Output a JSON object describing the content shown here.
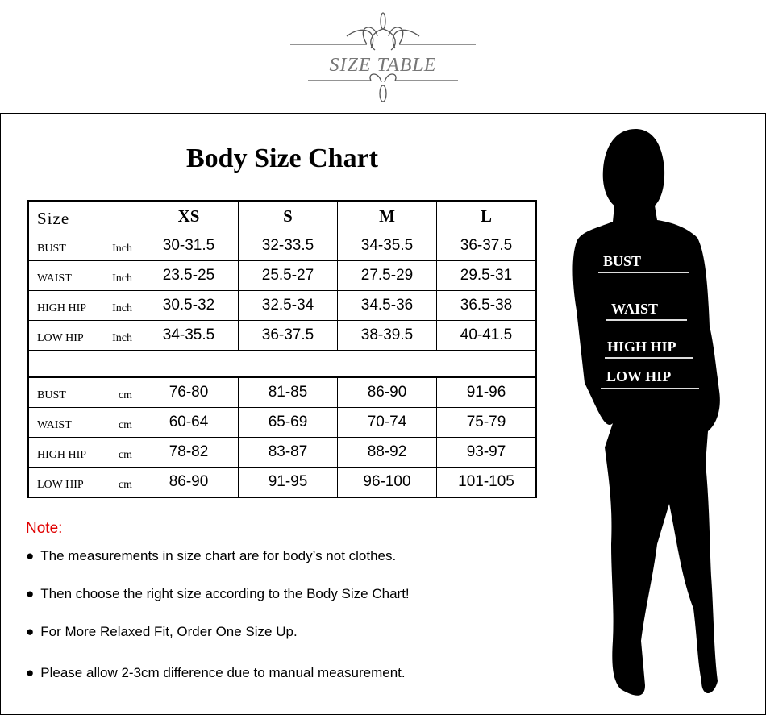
{
  "logo_text": "SIZE TABLE",
  "title": "Body Size Chart",
  "table": {
    "header": {
      "label": "Size",
      "sizes": [
        "XS",
        "S",
        "M",
        "L"
      ]
    },
    "inch_rows": [
      {
        "name": "BUST",
        "unit": "Inch",
        "values": [
          "30-31.5",
          "32-33.5",
          "34-35.5",
          "36-37.5"
        ]
      },
      {
        "name": "WAIST",
        "unit": "Inch",
        "values": [
          "23.5-25",
          "25.5-27",
          "27.5-29",
          "29.5-31"
        ]
      },
      {
        "name": "HIGH HIP",
        "unit": "Inch",
        "values": [
          "30.5-32",
          "32.5-34",
          "34.5-36",
          "36.5-38"
        ]
      },
      {
        "name": "LOW HIP",
        "unit": "Inch",
        "values": [
          "34-35.5",
          "36-37.5",
          "38-39.5",
          "40-41.5"
        ]
      }
    ],
    "cm_rows": [
      {
        "name": "BUST",
        "unit": "cm",
        "values": [
          "76-80",
          "81-85",
          "86-90",
          "91-96"
        ]
      },
      {
        "name": "WAIST",
        "unit": "cm",
        "values": [
          "60-64",
          "65-69",
          "70-74",
          "75-79"
        ]
      },
      {
        "name": "HIGH HIP",
        "unit": "cm",
        "values": [
          "78-82",
          "83-87",
          "88-92",
          "93-97"
        ]
      },
      {
        "name": "LOW HIP",
        "unit": "cm",
        "values": [
          "86-90",
          "91-95",
          "96-100",
          "101-105"
        ]
      }
    ]
  },
  "note": {
    "label": "Note:",
    "color": "#e00000",
    "bullet_glyph": "●",
    "items": [
      "The measurements in size chart are for body’s not clothes.",
      "Then choose the right size according to the Body Size Chart!",
      "For More Relaxed Fit, Order One Size Up.",
      "Please allow 2-3cm difference due to manual measurement."
    ]
  },
  "figure_labels": [
    "BUST",
    "WAIST",
    "HIGH HIP",
    "LOW HIP"
  ]
}
